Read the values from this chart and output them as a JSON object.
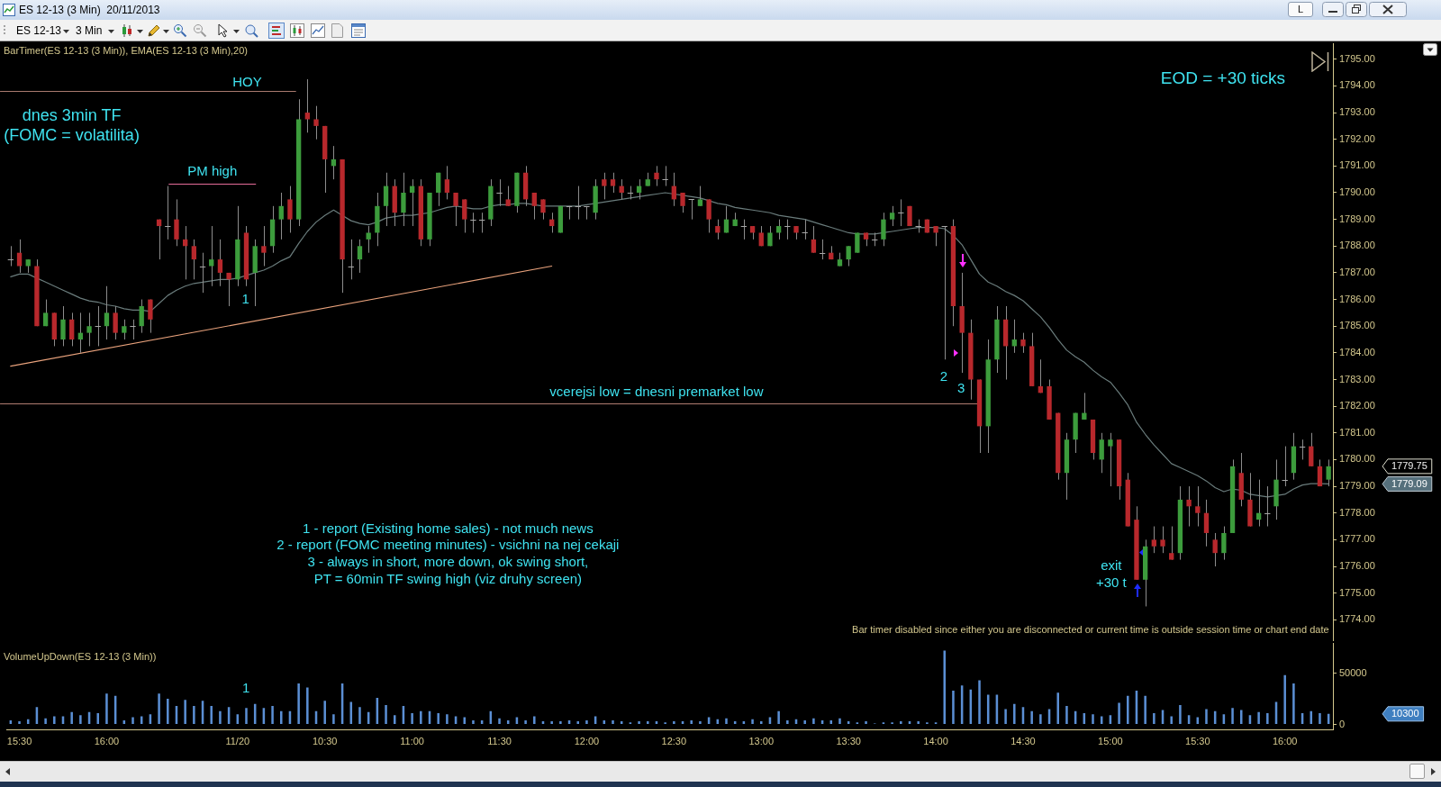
{
  "chart_data": [
    {
      "type": "candlestick",
      "title": "ES 12-13 (3 Min)  20/11/2013",
      "subtitle": "BarTimer(ES 12-13 (3 Min)), EMA(ES 12-13 (3 Min),20)",
      "categories": [
        null,
        null,
        null,
        null,
        null,
        null,
        null,
        null,
        null,
        null,
        null,
        null,
        null,
        null,
        null,
        null,
        null,
        null,
        null,
        null,
        null,
        null,
        null,
        null,
        null,
        null,
        null,
        null,
        null,
        null,
        null,
        null,
        null,
        null,
        null,
        null,
        null,
        null,
        null,
        null,
        null,
        null,
        null,
        null,
        null,
        null,
        null,
        null,
        null,
        null,
        null,
        null,
        null,
        null,
        null,
        null,
        null,
        null,
        null,
        null,
        null,
        null,
        null,
        null,
        null,
        null,
        null,
        null,
        null,
        null,
        null,
        null,
        null,
        null,
        null,
        null,
        null,
        null,
        null,
        null,
        null,
        null,
        null,
        null,
        null,
        null,
        null,
        null,
        null,
        null,
        null,
        null,
        null,
        null,
        null,
        null,
        null,
        null,
        null,
        null,
        null,
        null,
        null,
        null,
        null,
        null,
        null,
        null,
        null,
        null,
        null,
        null,
        null,
        null,
        null,
        null,
        null,
        null,
        null,
        null,
        null,
        null,
        null,
        null,
        null,
        null,
        null,
        null,
        null,
        null,
        null,
        null,
        null,
        null,
        null,
        null,
        null,
        null,
        null,
        null,
        null,
        null,
        null,
        null,
        null,
        null,
        null,
        null,
        null,
        null,
        null,
        null
      ],
      "ohlc": [
        [
          1787.5,
          1788,
          1787.25,
          1787.5
        ],
        [
          1787.75,
          1788.25,
          1787,
          1787.25
        ],
        [
          1787.25,
          1787.5,
          1787,
          1787.5
        ],
        [
          1787.25,
          1787.5,
          1785,
          1785
        ],
        [
          1785,
          1786,
          1785,
          1785.5
        ],
        [
          1785.5,
          1785.5,
          1784.25,
          1784.5
        ],
        [
          1784.5,
          1785.75,
          1784.25,
          1785.25
        ],
        [
          1785.25,
          1785.5,
          1784.25,
          1784.5
        ],
        [
          1784.5,
          1785.5,
          1784,
          1784.75
        ],
        [
          1784.75,
          1785.5,
          1784.25,
          1785
        ],
        [
          1785,
          1785.75,
          1784.25,
          1785
        ],
        [
          1785,
          1786.5,
          1784.5,
          1785.5
        ],
        [
          1785.5,
          1785.75,
          1784.5,
          1784.75
        ],
        [
          1784.75,
          1785.25,
          1784.5,
          1785
        ],
        [
          1785,
          1785.25,
          1784.5,
          1785
        ],
        [
          1785,
          1786,
          1784.75,
          1785.75
        ],
        [
          1786,
          1786,
          1784.75,
          1785.25
        ],
        [
          1789,
          1789,
          1787.5,
          1788.75
        ],
        [
          1788.75,
          1790.25,
          1788.25,
          1788.75
        ],
        [
          1789,
          1789.75,
          1788,
          1788.25
        ],
        [
          1788.25,
          1788.75,
          1786.75,
          1788
        ],
        [
          1788,
          1788.25,
          1786.75,
          1787.5
        ],
        [
          1787.25,
          1787.75,
          1786.25,
          1787.25
        ],
        [
          1787.25,
          1788.75,
          1786.5,
          1787.5
        ],
        [
          1787.5,
          1788.25,
          1786.5,
          1787
        ],
        [
          1787,
          1787,
          1785.75,
          1786.75
        ],
        [
          1786.75,
          1789.5,
          1786.5,
          1788.25
        ],
        [
          1788.5,
          1788.75,
          1786.5,
          1786.75
        ],
        [
          1787,
          1788.25,
          1785.75,
          1788
        ],
        [
          1788,
          1788.75,
          1787.25,
          1787.75
        ],
        [
          1788,
          1789.5,
          1787.75,
          1789
        ],
        [
          1789,
          1790,
          1788.25,
          1789.5
        ],
        [
          1789.75,
          1790.25,
          1788.5,
          1789
        ],
        [
          1789,
          1793.5,
          1788.75,
          1792.75
        ],
        [
          1793,
          1794.25,
          1792.25,
          1792.75
        ],
        [
          1792.75,
          1793.25,
          1792,
          1792.5
        ],
        [
          1792.5,
          1792.5,
          1790,
          1791.25
        ],
        [
          1791,
          1791.75,
          1790.5,
          1791.25
        ],
        [
          1791.25,
          1791.25,
          1786.25,
          1787.5
        ],
        [
          1787.25,
          1788.25,
          1786.75,
          1787.25
        ],
        [
          1787.5,
          1788.25,
          1787,
          1788
        ],
        [
          1788.25,
          1788.75,
          1787.75,
          1788.5
        ],
        [
          1788.5,
          1790,
          1788,
          1789.5
        ],
        [
          1789.5,
          1790.75,
          1788.75,
          1790.25
        ],
        [
          1790.25,
          1790.5,
          1788.75,
          1789.25
        ],
        [
          1789.25,
          1790.75,
          1788.75,
          1790
        ],
        [
          1790,
          1790.5,
          1788.75,
          1790.25
        ],
        [
          1790.25,
          1790.5,
          1788,
          1788.25
        ],
        [
          1788.25,
          1790,
          1788,
          1790
        ],
        [
          1790,
          1790.75,
          1789.5,
          1790.75
        ],
        [
          1790.5,
          1791,
          1789.75,
          1790
        ],
        [
          1790,
          1790,
          1788.75,
          1789.5
        ],
        [
          1789.75,
          1789.75,
          1788.5,
          1789
        ],
        [
          1789,
          1789.25,
          1788.5,
          1789
        ],
        [
          1789,
          1789.25,
          1788.5,
          1789
        ],
        [
          1789,
          1790.5,
          1788.75,
          1790.25
        ],
        [
          1790,
          1790.5,
          1789.5,
          1790
        ],
        [
          1789.75,
          1790.25,
          1789.5,
          1789.5
        ],
        [
          1789.5,
          1790.75,
          1789.25,
          1790.75
        ],
        [
          1790.75,
          1791,
          1789.5,
          1789.75
        ],
        [
          1790,
          1790,
          1789,
          1789.5
        ],
        [
          1789.75,
          1789.75,
          1789,
          1789.25
        ],
        [
          1789,
          1789.25,
          1788.5,
          1788.75
        ],
        [
          1788.5,
          1789.5,
          1788.5,
          1789.5
        ],
        [
          1789.5,
          1789.5,
          1789,
          1789.5
        ],
        [
          1789.5,
          1790.25,
          1789,
          1789.5
        ],
        [
          1789.5,
          1789.5,
          1789,
          1789.5
        ],
        [
          1789.25,
          1790.5,
          1789,
          1790.25
        ],
        [
          1790.5,
          1790.75,
          1789.75,
          1790.25
        ],
        [
          1790.5,
          1790.75,
          1790,
          1790.25
        ],
        [
          1790.25,
          1790.5,
          1789.75,
          1790
        ],
        [
          1790,
          1790.25,
          1789.75,
          1790
        ],
        [
          1790,
          1790.5,
          1789.75,
          1790.25
        ],
        [
          1790.25,
          1790.75,
          1790.25,
          1790.5
        ],
        [
          1790.75,
          1791,
          1790.25,
          1790.5
        ],
        [
          1790.5,
          1791,
          1790.25,
          1790.5
        ],
        [
          1790.25,
          1790.75,
          1789.5,
          1789.75
        ],
        [
          1790,
          1790,
          1789.25,
          1789.5
        ],
        [
          1789.75,
          1789.75,
          1789,
          1789.75
        ],
        [
          1789.5,
          1790.25,
          1789.5,
          1789.75
        ],
        [
          1789.75,
          1789.75,
          1788.5,
          1789
        ],
        [
          1788.75,
          1789,
          1788.25,
          1788.5
        ],
        [
          1788.5,
          1789.5,
          1788.5,
          1789
        ],
        [
          1788.75,
          1789.25,
          1788.75,
          1789
        ],
        [
          1788.75,
          1789,
          1788.25,
          1788.75
        ],
        [
          1788.75,
          1788.75,
          1788.25,
          1788.5
        ],
        [
          1788.5,
          1788.75,
          1788,
          1788
        ],
        [
          1788,
          1788.75,
          1788,
          1788.5
        ],
        [
          1788.5,
          1789,
          1788.25,
          1788.75
        ],
        [
          1788.75,
          1789,
          1788.25,
          1788.75
        ],
        [
          1788.75,
          1788.75,
          1788.25,
          1788.5
        ],
        [
          1788.5,
          1789,
          1788.25,
          1788.5
        ],
        [
          1788.25,
          1788.75,
          1787.75,
          1787.75
        ],
        [
          1787.75,
          1788.25,
          1787.5,
          1787.75
        ],
        [
          1787.75,
          1788,
          1787.5,
          1787.5
        ],
        [
          1787.25,
          1787.75,
          1787.25,
          1787.5
        ],
        [
          1787.5,
          1788,
          1787.25,
          1788
        ],
        [
          1787.75,
          1788.5,
          1787.75,
          1788.5
        ],
        [
          1788.5,
          1788.5,
          1788,
          1788.25
        ],
        [
          1788.25,
          1788.5,
          1788,
          1788.25
        ],
        [
          1788.25,
          1789.25,
          1788,
          1789
        ],
        [
          1789,
          1789.5,
          1788.75,
          1789.25
        ],
        [
          1789.25,
          1789.75,
          1788.75,
          1789.25
        ],
        [
          1789.5,
          1789.5,
          1788.75,
          1788.75
        ],
        [
          1788.75,
          1789,
          1788.5,
          1788.75
        ],
        [
          1789,
          1789,
          1788.5,
          1788.5
        ],
        [
          1788.75,
          1788.75,
          1788,
          1788.5
        ],
        [
          1788.75,
          1788.75,
          1783.75,
          1788.75
        ],
        [
          1788.75,
          1789,
          1785,
          1785.75
        ],
        [
          1785.75,
          1787,
          1783.25,
          1784.75
        ],
        [
          1784.75,
          1785.25,
          1782.25,
          1783
        ],
        [
          1783,
          1783,
          1780.25,
          1781.25
        ],
        [
          1781.25,
          1784.5,
          1780.25,
          1783.75
        ],
        [
          1783.75,
          1785.75,
          1783.25,
          1785.25
        ],
        [
          1785.25,
          1785.75,
          1783,
          1784.25
        ],
        [
          1784.25,
          1785.25,
          1784,
          1784.5
        ],
        [
          1784.5,
          1784.75,
          1784,
          1784.25
        ],
        [
          1784.25,
          1784.75,
          1782.75,
          1782.75
        ],
        [
          1782.75,
          1783.75,
          1782.5,
          1782.5
        ],
        [
          1782.75,
          1783,
          1781.5,
          1781.5
        ],
        [
          1781.75,
          1781.75,
          1779.25,
          1779.5
        ],
        [
          1779.5,
          1781,
          1778.5,
          1780.75
        ],
        [
          1780.75,
          1781.75,
          1780.25,
          1781.75
        ],
        [
          1781.5,
          1782.5,
          1781.5,
          1781.75
        ],
        [
          1781.5,
          1781.5,
          1780,
          1780.25
        ],
        [
          1780,
          1781,
          1779.5,
          1780.75
        ],
        [
          1780.5,
          1781,
          1779,
          1780.75
        ],
        [
          1780.75,
          1780.75,
          1778.5,
          1779
        ],
        [
          1779.25,
          1779.5,
          1777.5,
          1777.5
        ],
        [
          1777.75,
          1778.25,
          1775.5,
          1775.5
        ],
        [
          1775.5,
          1777,
          1774.5,
          1776.75
        ],
        [
          1777,
          1777.5,
          1776.5,
          1776.75
        ],
        [
          1777,
          1777.5,
          1776.5,
          1776.75
        ],
        [
          1776.5,
          1777.5,
          1776.25,
          1776.25
        ],
        [
          1776.5,
          1779,
          1776.25,
          1778.5
        ],
        [
          1778.5,
          1779,
          1777.5,
          1778.25
        ],
        [
          1778.25,
          1779,
          1777.5,
          1778
        ],
        [
          1778,
          1778.5,
          1776.75,
          1777.25
        ],
        [
          1777,
          1777.25,
          1776,
          1776.5
        ],
        [
          1776.5,
          1777.5,
          1776.25,
          1777.25
        ],
        [
          1777.25,
          1780,
          1777.25,
          1779.75
        ],
        [
          1779.5,
          1780.25,
          1778.25,
          1778.5
        ],
        [
          1778.5,
          1779.5,
          1777.5,
          1777.5
        ],
        [
          1777.75,
          1779.25,
          1777.5,
          1778
        ],
        [
          1778,
          1779,
          1777.5,
          1778
        ],
        [
          1778.25,
          1780,
          1777.75,
          1779.25
        ],
        [
          1779.25,
          1780.5,
          1779,
          1779.25
        ],
        [
          1779.5,
          1781,
          1779.25,
          1780.5
        ],
        [
          1780.5,
          1780.75,
          1780,
          1780.5
        ],
        [
          1780.5,
          1781,
          1779.75,
          1779.75
        ],
        [
          1779.75,
          1780,
          1779,
          1779
        ],
        [
          1779.25,
          1780,
          1779,
          1779.75
        ]
      ],
      "colors": [
        "#a8a8a8",
        "#b8282c",
        "#3c9c3c",
        "#b8282c",
        "#3c9c3c",
        "#b8282c",
        "#3c9c3c",
        "#b8282c",
        "#3c9c3c",
        "#3c9c3c",
        "#a8a8a8",
        "#3c9c3c",
        "#b8282c",
        "#3c9c3c",
        "#a8a8a8",
        "#3c9c3c",
        "#b8282c",
        "#b8282c",
        "#a8a8a8",
        "#b8282c",
        "#b8282c",
        "#b8282c",
        "#a8a8a8",
        "#3c9c3c",
        "#b8282c",
        "#b8282c",
        "#3c9c3c",
        "#b8282c",
        "#3c9c3c",
        "#b8282c",
        "#3c9c3c",
        "#3c9c3c",
        "#b8282c",
        "#3c9c3c",
        "#b8282c",
        "#b8282c",
        "#b8282c",
        "#3c9c3c",
        "#b8282c",
        "#a8a8a8",
        "#3c9c3c",
        "#3c9c3c",
        "#3c9c3c",
        "#3c9c3c",
        "#b8282c",
        "#3c9c3c",
        "#3c9c3c",
        "#b8282c",
        "#3c9c3c",
        "#3c9c3c",
        "#b8282c",
        "#b8282c",
        "#b8282c",
        "#a8a8a8",
        "#a8a8a8",
        "#3c9c3c",
        "#a8a8a8",
        "#b8282c",
        "#3c9c3c",
        "#b8282c",
        "#b8282c",
        "#b8282c",
        "#b8282c",
        "#3c9c3c",
        "#a8a8a8",
        "#a8a8a8",
        "#a8a8a8",
        "#3c9c3c",
        "#b8282c",
        "#b8282c",
        "#b8282c",
        "#a8a8a8",
        "#3c9c3c",
        "#3c9c3c",
        "#b8282c",
        "#a8a8a8",
        "#b8282c",
        "#b8282c",
        "#a8a8a8",
        "#3c9c3c",
        "#b8282c",
        "#b8282c",
        "#3c9c3c",
        "#3c9c3c",
        "#a8a8a8",
        "#b8282c",
        "#b8282c",
        "#3c9c3c",
        "#3c9c3c",
        "#a8a8a8",
        "#b8282c",
        "#a8a8a8",
        "#b8282c",
        "#a8a8a8",
        "#b8282c",
        "#3c9c3c",
        "#3c9c3c",
        "#3c9c3c",
        "#b8282c",
        "#a8a8a8",
        "#3c9c3c",
        "#3c9c3c",
        "#a8a8a8",
        "#b8282c",
        "#a8a8a8",
        "#b8282c",
        "#b8282c",
        "#a8a8a8",
        "#b8282c",
        "#b8282c",
        "#b8282c",
        "#b8282c",
        "#3c9c3c",
        "#3c9c3c",
        "#b8282c",
        "#3c9c3c",
        "#b8282c",
        "#b8282c",
        "#b8282c",
        "#b8282c",
        "#b8282c",
        "#3c9c3c",
        "#3c9c3c",
        "#3c9c3c",
        "#b8282c",
        "#3c9c3c",
        "#3c9c3c",
        "#b8282c",
        "#b8282c",
        "#b8282c",
        "#3c9c3c",
        "#b8282c",
        "#b8282c",
        "#b8282c",
        "#3c9c3c",
        "#b8282c",
        "#b8282c",
        "#b8282c",
        "#b8282c",
        "#3c9c3c",
        "#3c9c3c",
        "#b8282c",
        "#b8282c",
        "#3c9c3c",
        "#a8a8a8",
        "#3c9c3c",
        "#a8a8a8",
        "#3c9c3c",
        "#a8a8a8",
        "#b8282c",
        "#b8282c",
        "#3c9c3c"
      ],
      "series": [
        {
          "type": "line",
          "color": "#6a7c7c",
          "values": [
            1786.85,
            1786.95,
            1786.95,
            1786.8,
            1786.65,
            1786.5,
            1786.35,
            1786.2,
            1786.05,
            1785.95,
            1785.9,
            1785.8,
            1785.75,
            1785.65,
            1785.6,
            1785.6,
            1785.55,
            1785.85,
            1786.15,
            1786.35,
            1786.5,
            1786.6,
            1786.65,
            1786.7,
            1786.75,
            1786.75,
            1786.8,
            1786.9,
            1787,
            1787.1,
            1787.25,
            1787.45,
            1787.6,
            1788.1,
            1788.55,
            1788.9,
            1789.15,
            1789.35,
            1789.15,
            1788.95,
            1788.85,
            1788.8,
            1788.9,
            1789.05,
            1789.1,
            1789.15,
            1789.15,
            1789.2,
            1789.25,
            1789.35,
            1789.45,
            1789.5,
            1789.45,
            1789.4,
            1789.4,
            1789.5,
            1789.55,
            1789.55,
            1789.6,
            1789.6,
            1789.55,
            1789.5,
            1789.5,
            1789.5,
            1789.5,
            1789.5,
            1789.55,
            1789.6,
            1789.65,
            1789.7,
            1789.75,
            1789.8,
            1789.85,
            1789.9,
            1789.95,
            1790,
            1789.95,
            1789.9,
            1789.85,
            1789.8,
            1789.7,
            1789.6,
            1789.55,
            1789.45,
            1789.4,
            1789.35,
            1789.3,
            1789.25,
            1789.15,
            1789.1,
            1789.05,
            1789,
            1788.9,
            1788.8,
            1788.7,
            1788.6,
            1788.5,
            1788.45,
            1788.45,
            1788.45,
            1788.5,
            1788.55,
            1788.6,
            1788.65,
            1788.7,
            1788.7,
            1788.7,
            1788.65,
            1788.4,
            1788.05,
            1787.5,
            1786.95,
            1786.65,
            1786.5,
            1786.3,
            1786.15,
            1785.95,
            1785.65,
            1785.35,
            1784.95,
            1784.5,
            1784.1,
            1783.85,
            1783.65,
            1783.35,
            1783.1,
            1782.9,
            1782.5,
            1782.05,
            1781.4,
            1780.95,
            1780.55,
            1780.2,
            1779.85,
            1779.7,
            1779.55,
            1779.4,
            1779.2,
            1778.95,
            1778.8,
            1778.9,
            1778.85,
            1778.7,
            1778.65,
            1778.6,
            1778.65,
            1778.7,
            1778.9,
            1779.05,
            1779.1,
            1779.1,
            1779.09
          ]
        },
        {
          "type": "line",
          "color": "#e9a27c",
          "values": [
            1783.5,
            null,
            null,
            null,
            null,
            null,
            null,
            null,
            null,
            null,
            null,
            null,
            null,
            null,
            null,
            null,
            null,
            null,
            null,
            null,
            null,
            null,
            null,
            null,
            null,
            null,
            null,
            null,
            null,
            null,
            null,
            null,
            null,
            null,
            null,
            null,
            null,
            null,
            null,
            null,
            null,
            null,
            null,
            null,
            null,
            null,
            null,
            null,
            null,
            null,
            null,
            null,
            null,
            null,
            null,
            null,
            null,
            null,
            null,
            null,
            null,
            null,
            1787.25,
            null,
            null,
            null,
            null,
            null,
            null,
            null,
            null,
            null,
            null,
            null,
            null,
            null,
            null,
            null,
            null,
            null,
            null,
            null,
            null,
            null,
            null,
            null,
            null,
            null,
            null,
            null,
            null,
            null,
            null,
            null,
            null,
            null,
            null,
            null,
            null,
            null,
            null,
            null,
            null,
            null,
            null,
            null,
            null,
            null,
            null,
            null,
            null,
            null,
            null,
            null,
            null,
            null,
            null,
            null,
            null,
            null,
            null,
            null,
            null,
            null,
            null,
            null,
            null,
            null,
            null,
            null,
            null,
            null,
            null,
            null,
            null,
            null,
            null,
            null,
            null,
            null,
            null,
            null,
            null,
            null,
            null,
            null,
            null,
            null,
            null,
            null,
            null,
            null
          ]
        }
      ],
      "ylim": [
        1773.2,
        1795.6
      ],
      "yticks": [
        {
          "value": 1774,
          "label": "1774.00"
        },
        {
          "value": 1775,
          "label": "1775.00"
        },
        {
          "value": 1776,
          "label": "1776.00"
        },
        {
          "value": 1777,
          "label": "1777.00"
        },
        {
          "value": 1778,
          "label": "1778.00"
        },
        {
          "value": 1779,
          "label": "1779.00"
        },
        {
          "value": 1780,
          "label": "1780.00"
        },
        {
          "value": 1781,
          "label": "1781.00"
        },
        {
          "value": 1782,
          "label": "1782.00"
        },
        {
          "value": 1783,
          "label": "1783.00"
        },
        {
          "value": 1784,
          "label": "1784.00"
        },
        {
          "value": 1785,
          "label": "1785.00"
        },
        {
          "value": 1786,
          "label": "1786.00"
        },
        {
          "value": 1787,
          "label": "1787.00"
        },
        {
          "value": 1788,
          "label": "1788.00"
        },
        {
          "value": 1789,
          "label": "1789.00"
        },
        {
          "value": 1790,
          "label": "1790.00"
        },
        {
          "value": 1791,
          "label": "1791.00"
        },
        {
          "value": 1792,
          "label": "1792.00"
        },
        {
          "value": 1793,
          "label": "1793.00"
        },
        {
          "value": 1794,
          "label": "1794.00"
        },
        {
          "value": 1795,
          "label": "1795.00"
        }
      ],
      "tick_labels": "y",
      "ref_lines": [
        {
          "axis": "y",
          "value": 1793.8,
          "label": "HOY",
          "color": "#a87a6e"
        },
        {
          "axis": "y",
          "value": 1790.35,
          "label": "PM high",
          "color": "#e46c98"
        },
        {
          "axis": "y",
          "value": 1782.1,
          "label": "vcerejsi low = dnesni premarket low",
          "color": "#b07c70"
        }
      ],
      "annotations": [
        "ES 12-13",
        "3 Min",
        "L",
        "dnes 3min TF\n(FOMC = volatilita)",
        "1",
        "2",
        "3",
        "exit\n+30 t",
        "EOD = +30 ticks",
        "1 - report (Existing home sales) - not much news\n2 - report (FOMC meeting minutes) - vsichni na nej cekaji\n3 - always in short, more down, ok swing short,\nPT = 60min TF swing high (viz druhy screen)",
        "Bar timer disabled since either you are disconnected or current time is outside session time or chart end date",
        "1779.75",
        "1779.09"
      ]
    },
    {
      "type": "bar",
      "title": "VolumeUpDown(ES 12-13 (3 Min))",
      "categories": [
        null,
        "15:30",
        null,
        null,
        null,
        null,
        null,
        null,
        null,
        null,
        null,
        "16:00",
        null,
        null,
        null,
        null,
        null,
        null,
        null,
        null,
        null,
        null,
        null,
        null,
        null,
        null,
        "11/20",
        null,
        null,
        null,
        null,
        null,
        null,
        null,
        null,
        null,
        "10:30",
        null,
        null,
        null,
        null,
        null,
        null,
        null,
        null,
        null,
        "11:00",
        null,
        null,
        null,
        null,
        null,
        null,
        null,
        null,
        null,
        "11:30",
        null,
        null,
        null,
        null,
        null,
        null,
        null,
        null,
        null,
        "12:00",
        null,
        null,
        null,
        null,
        null,
        null,
        null,
        null,
        null,
        "12:30",
        null,
        null,
        null,
        null,
        null,
        null,
        null,
        null,
        null,
        "13:00",
        null,
        null,
        null,
        null,
        null,
        null,
        null,
        null,
        null,
        "13:30",
        null,
        null,
        null,
        null,
        null,
        null,
        null,
        null,
        null,
        "14:00",
        null,
        null,
        null,
        null,
        null,
        null,
        null,
        null,
        null,
        "14:30",
        null,
        null,
        null,
        null,
        null,
        null,
        null,
        null,
        null,
        "15:00",
        null,
        null,
        null,
        null,
        null,
        null,
        null,
        null,
        null,
        "15:30",
        null,
        null,
        null,
        null,
        null,
        null,
        null,
        null,
        null,
        "16:00",
        null,
        null,
        null,
        null,
        null
      ],
      "values": [
        4000,
        3000,
        5000,
        17000,
        6000,
        8000,
        8000,
        12000,
        9000,
        12000,
        11000,
        30000,
        28000,
        4000,
        7000,
        8000,
        10000,
        30000,
        25000,
        18000,
        24000,
        18000,
        23000,
        18000,
        13000,
        17000,
        10000,
        16000,
        20000,
        16000,
        18000,
        13000,
        13000,
        40000,
        36000,
        13000,
        23000,
        10000,
        40000,
        22000,
        17000,
        12000,
        26000,
        19000,
        9000,
        18000,
        11000,
        13000,
        13000,
        11000,
        10000,
        8000,
        7000,
        4000,
        4000,
        13000,
        6000,
        4000,
        7000,
        4000,
        8000,
        3000,
        3000,
        3000,
        4000,
        3000,
        4000,
        8000,
        4000,
        4000,
        3000,
        2000,
        3000,
        3000,
        3000,
        2000,
        3000,
        3000,
        4000,
        3000,
        7000,
        5000,
        6000,
        3000,
        3000,
        5000,
        3000,
        7000,
        13000,
        4000,
        5000,
        4000,
        6000,
        4000,
        4000,
        6000,
        3000,
        2000,
        3000,
        1000,
        2000,
        2000,
        3000,
        3000,
        3000,
        2000,
        2000,
        72000,
        33000,
        38000,
        34000,
        43000,
        29000,
        29000,
        15000,
        20000,
        17000,
        13000,
        10000,
        15000,
        31000,
        18000,
        13000,
        11000,
        10000,
        8000,
        9000,
        21000,
        28000,
        33000,
        28000,
        11000,
        14000,
        8000,
        19000,
        9000,
        7000,
        15000,
        13000,
        10000,
        16000,
        14000,
        9000,
        12000,
        11000,
        22000,
        48000,
        40000,
        11000,
        13000,
        11000,
        10300
      ],
      "color": "#5b8fd4",
      "ylim": [
        -5500,
        79500
      ],
      "yticks": [
        0,
        50000
      ],
      "annotations": [
        "1",
        "10300"
      ]
    }
  ]
}
